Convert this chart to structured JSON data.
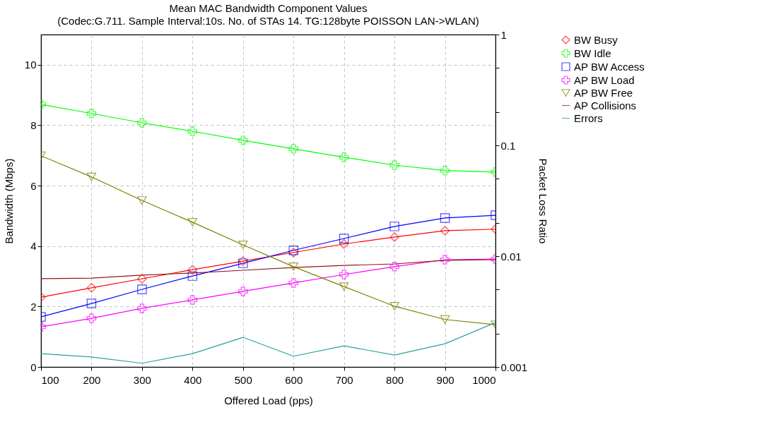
{
  "chart_data": {
    "type": "line",
    "title": "Mean MAC Bandwidth Component Values",
    "subtitle": "(Codec:G.711. Sample Interval:10s. No. of STAs 14. TG:128byte POISSON LAN->WLAN)",
    "xlabel": "Offered Load (pps)",
    "ylabel": "Bandwidth (Mbps)",
    "y2label": "Packet Loss Ratio",
    "x": [
      100,
      200,
      300,
      400,
      500,
      600,
      700,
      800,
      900,
      1000
    ],
    "xlim": [
      100,
      1000
    ],
    "xticks": [
      100,
      200,
      300,
      400,
      500,
      600,
      700,
      800,
      900,
      1000
    ],
    "ylim": [
      0,
      11
    ],
    "yticks": [
      0,
      2,
      4,
      6,
      8,
      10
    ],
    "y2lim": [
      0.001,
      1
    ],
    "y2ticks": [
      0.001,
      {
        "value": 0.002,
        "label": null
      },
      {
        "value": 0.005,
        "label": null
      },
      0.01,
      {
        "value": 0.02,
        "label": null
      },
      {
        "value": 0.05,
        "label": null
      },
      0.1,
      {
        "value": 0.2,
        "label": null
      },
      {
        "value": 0.5,
        "label": null
      },
      1
    ],
    "log": "y2",
    "grid": true,
    "legend": "right",
    "series": [
      {
        "name": "BW Busy",
        "color": "#ff0000",
        "marker": "diamond",
        "values": [
          2.31,
          2.62,
          2.92,
          3.22,
          3.5,
          3.79,
          4.07,
          4.3,
          4.51,
          4.56
        ]
      },
      {
        "name": "BW Idle",
        "color": "#00ff00",
        "marker": "cross",
        "values": [
          8.69,
          8.39,
          8.08,
          7.8,
          7.5,
          7.22,
          6.94,
          6.68,
          6.5,
          6.45
        ]
      },
      {
        "name": "AP BW Access",
        "color": "#0000ff",
        "marker": "square",
        "values": [
          1.66,
          2.1,
          2.57,
          3.01,
          3.43,
          3.86,
          4.25,
          4.65,
          4.93,
          5.02
        ]
      },
      {
        "name": "AP BW Load",
        "color": "#ff00ff",
        "marker": "cross",
        "values": [
          1.33,
          1.61,
          1.94,
          2.22,
          2.5,
          2.78,
          3.06,
          3.32,
          3.55,
          3.57
        ]
      },
      {
        "name": "AP BW Free",
        "color": "#808000",
        "marker": "triangle",
        "values": [
          6.99,
          6.29,
          5.51,
          4.79,
          4.04,
          3.32,
          2.66,
          2.01,
          1.57,
          1.4
        ]
      },
      {
        "name": "AP Collisions",
        "color": "#8b1a1a",
        "marker": "none",
        "values": [
          2.92,
          2.94,
          3.04,
          3.11,
          3.2,
          3.29,
          3.36,
          3.41,
          3.53,
          3.55
        ]
      },
      {
        "name": "Errors",
        "color": "#2e9e9e",
        "marker": "none",
        "axis": "y2",
        "values": [
          0.00132,
          0.00123,
          0.00108,
          0.00132,
          0.00185,
          0.00125,
          0.00155,
          0.00128,
          0.00162,
          0.00252
        ]
      }
    ]
  }
}
